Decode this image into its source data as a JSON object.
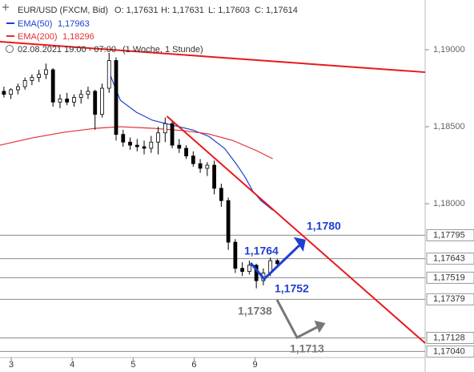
{
  "chart_data": {
    "type": "candlestick",
    "title": "EUR/USD (FXCM, Bid)",
    "ohlc_labels": [
      "O: 1,17631",
      "H: 1,17631",
      "L: 1,17603",
      "C: 1,17614"
    ],
    "subtitle": "02.08.2021 19:00 - 07:00",
    "interval": "(1 Woche, 1 Stunde)",
    "xlim": [
      -0.184,
      6.789
    ],
    "ylim": [
      1.16938,
      1.19323
    ],
    "xticks": [
      {
        "value": 0,
        "label": "3"
      },
      {
        "value": 1,
        "label": "4"
      },
      {
        "value": 2,
        "label": "5"
      },
      {
        "value": 3,
        "label": "6"
      },
      {
        "value": 4,
        "label": "9"
      }
    ],
    "yticks": [
      {
        "value": 1.19,
        "label": "1,19000"
      },
      {
        "value": 1.185,
        "label": "1,18500"
      },
      {
        "value": 1.18,
        "label": "1,18000"
      }
    ],
    "levels": [
      {
        "value": 1.17795,
        "label": "1,17795"
      },
      {
        "value": 1.17643,
        "label": "1,17643"
      },
      {
        "value": 1.17519,
        "label": "1,17519"
      },
      {
        "value": 1.17379,
        "label": "1,17379"
      },
      {
        "value": 1.17128,
        "label": "1,17128"
      },
      {
        "value": 1.1704,
        "label": "1,17040"
      }
    ],
    "candles": {
      "x": [
        -0.12,
        -0.005,
        0.11,
        0.225,
        0.34,
        0.455,
        0.57,
        0.685,
        0.8,
        0.915,
        1.03,
        1.145,
        1.26,
        1.375,
        1.49,
        1.605,
        1.72,
        1.835,
        1.95,
        2.065,
        2.18,
        2.295,
        2.41,
        2.525,
        2.64,
        2.755,
        2.87,
        2.985,
        3.1,
        3.215,
        3.33,
        3.445,
        3.56,
        3.675,
        3.79,
        3.905,
        4.02,
        4.135,
        4.25,
        4.365
      ],
      "open": [
        1.1873,
        1.1871,
        1.1874,
        1.1876,
        1.188,
        1.1882,
        1.1884,
        1.1887,
        1.1866,
        1.1868,
        1.1866,
        1.1869,
        1.1871,
        1.1873,
        1.1858,
        1.1875,
        1.1893,
        1.1845,
        1.184,
        1.1838,
        1.1837,
        1.1836,
        1.184,
        1.1846,
        1.1852,
        1.1838,
        1.1836,
        1.1831,
        1.1826,
        1.1823,
        1.1825,
        1.181,
        1.1802,
        1.1775,
        1.1758,
        1.1756,
        1.176,
        1.175,
        1.1755,
        1.1763
      ],
      "high": [
        1.1876,
        1.1875,
        1.1878,
        1.1882,
        1.1884,
        1.1887,
        1.1891,
        1.1888,
        1.1871,
        1.1872,
        1.1871,
        1.1874,
        1.1876,
        1.1874,
        1.1878,
        1.1898,
        1.1895,
        1.1848,
        1.1843,
        1.1842,
        1.1841,
        1.1844,
        1.185,
        1.1856,
        1.1854,
        1.1842,
        1.1838,
        1.1834,
        1.1829,
        1.1827,
        1.1828,
        1.1813,
        1.1804,
        1.1777,
        1.1762,
        1.1763,
        1.1761,
        1.1758,
        1.1765,
        1.1764
      ],
      "low": [
        1.1869,
        1.1868,
        1.1871,
        1.1874,
        1.1877,
        1.1879,
        1.1881,
        1.1863,
        1.1862,
        1.1864,
        1.1863,
        1.1865,
        1.1868,
        1.1848,
        1.1856,
        1.1872,
        1.1841,
        1.1837,
        1.1835,
        1.1834,
        1.1832,
        1.1833,
        1.1832,
        1.184,
        1.1836,
        1.1833,
        1.1829,
        1.1824,
        1.182,
        1.1818,
        1.1806,
        1.1798,
        1.177,
        1.1755,
        1.1753,
        1.1754,
        1.1745,
        1.1747,
        1.1753,
        1.176
      ],
      "close": [
        1.1871,
        1.1874,
        1.1876,
        1.188,
        1.1882,
        1.1884,
        1.1887,
        1.1866,
        1.1868,
        1.1866,
        1.1869,
        1.1871,
        1.1873,
        1.1858,
        1.1875,
        1.1893,
        1.1845,
        1.184,
        1.1838,
        1.1837,
        1.1836,
        1.184,
        1.1846,
        1.1852,
        1.1838,
        1.1836,
        1.1831,
        1.1826,
        1.1823,
        1.1825,
        1.181,
        1.1802,
        1.1775,
        1.1758,
        1.1756,
        1.176,
        1.175,
        1.1755,
        1.1763,
        1.1761
      ]
    },
    "series": [
      {
        "name": "EMA(50)",
        "last_label": "1,17963",
        "color": "#1f3fd1",
        "x": [
          1.605,
          1.789,
          2.053,
          2.316,
          2.579,
          2.974,
          3.237,
          3.5,
          3.697,
          3.829,
          3.961,
          4.092,
          4.289
        ],
        "values": [
          1.18854,
          1.18672,
          1.18594,
          1.18542,
          1.18516,
          1.18479,
          1.18438,
          1.18359,
          1.18255,
          1.18177,
          1.18083,
          1.18021,
          1.17958
        ]
      },
      {
        "name": "EMA(200)",
        "last_label": "1,18296",
        "color": "#e03030",
        "x": [
          -0.184,
          0.342,
          0.868,
          1.395,
          1.789,
          2.316,
          2.842,
          3.237,
          3.632,
          4.026,
          4.289
        ],
        "values": [
          1.1838,
          1.18427,
          1.18464,
          1.1849,
          1.185,
          1.1849,
          1.18474,
          1.18453,
          1.18411,
          1.18344,
          1.18292
        ]
      }
    ],
    "trendlines": [
      {
        "color": "#e8191b",
        "x": [
          -0.184,
          6.789
        ],
        "values": [
          1.19052,
          1.18854
        ]
      },
      {
        "color": "#e8191b",
        "x": [
          2.553,
          6.789
        ],
        "values": [
          1.18568,
          1.17094
        ]
      }
    ],
    "annotations": [
      "1,1780",
      "1,1764",
      "1,1752",
      "1,1738",
      "1,1713"
    ]
  }
}
